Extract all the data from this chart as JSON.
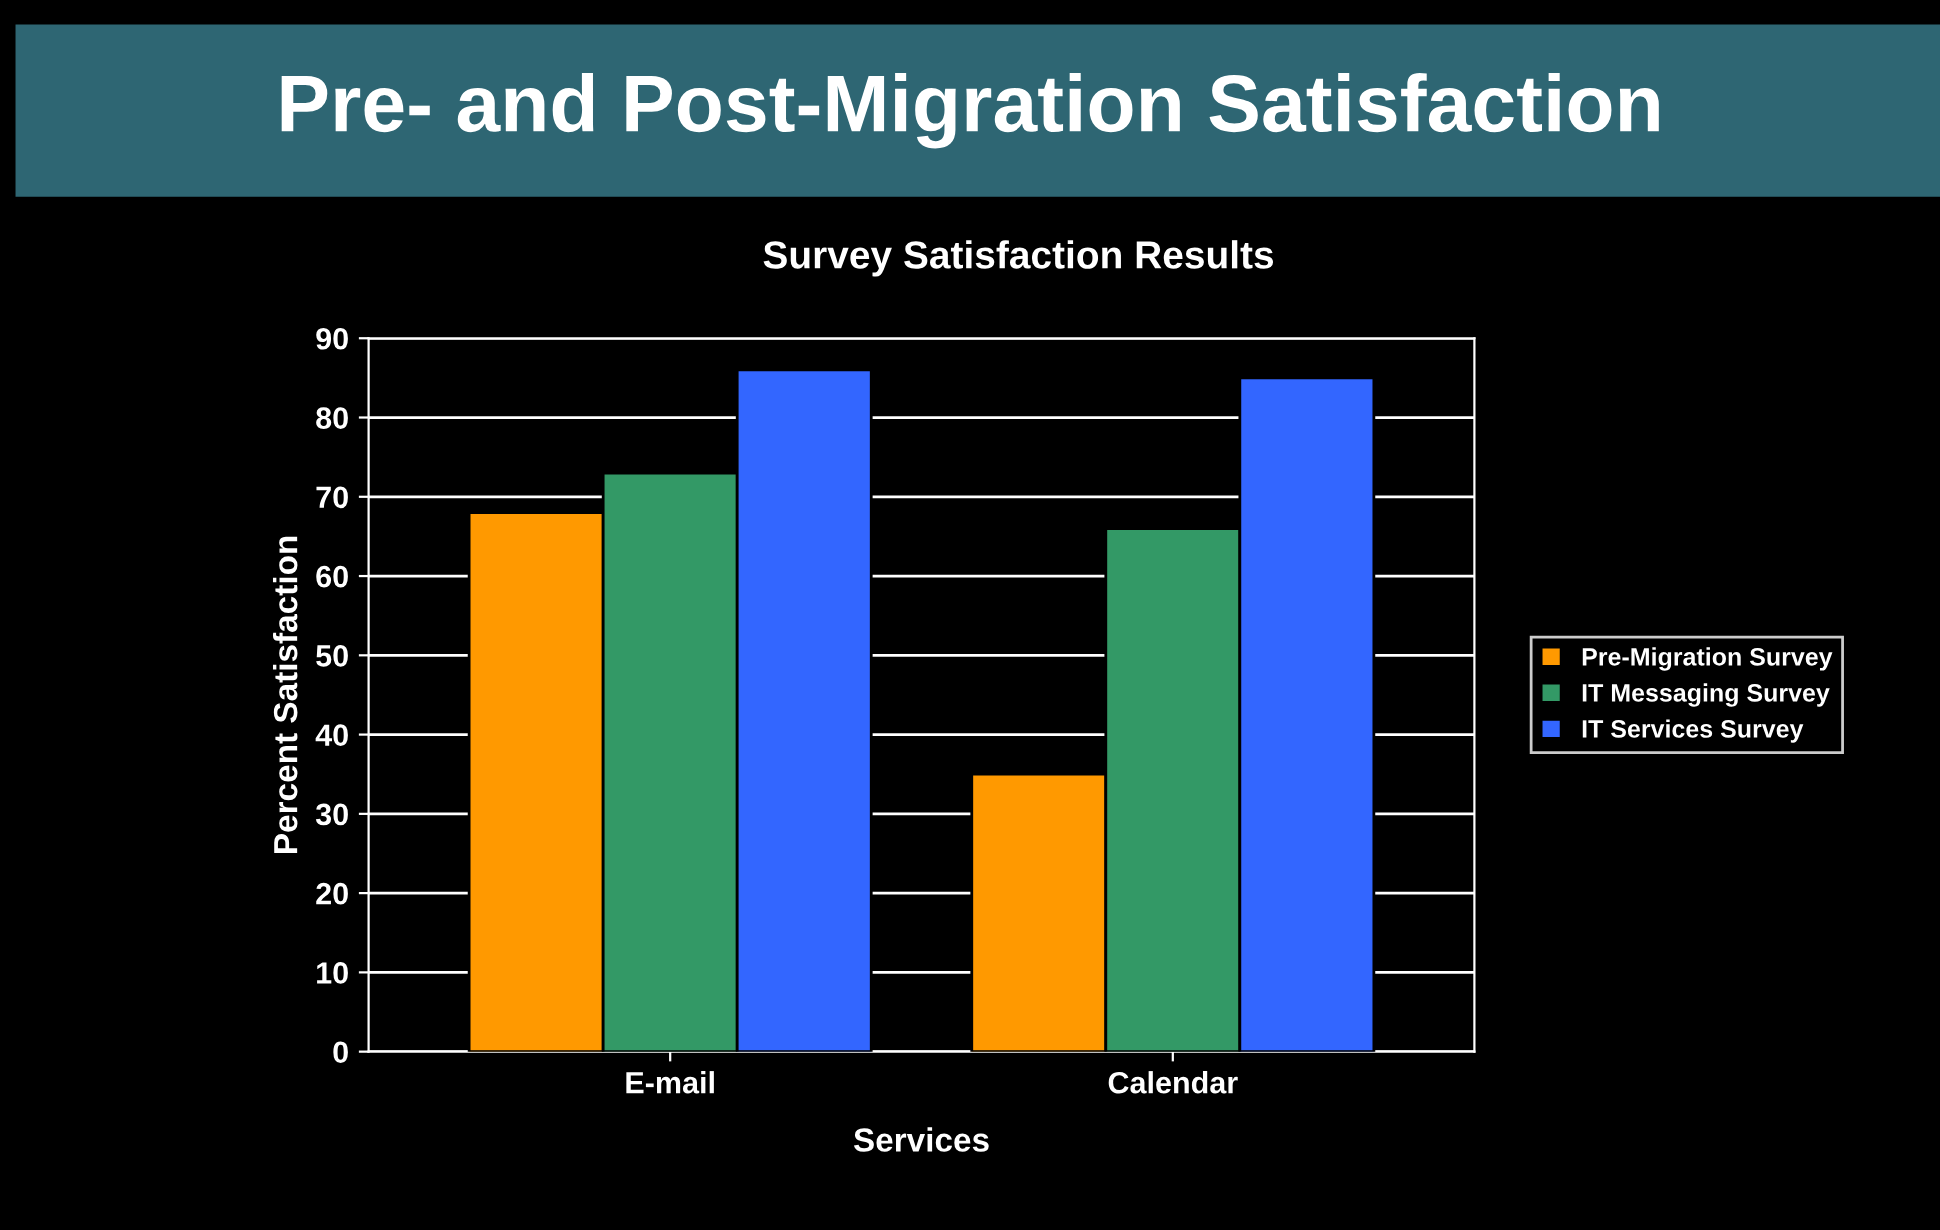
{
  "chart_data": {
    "type": "bar",
    "title": "Pre- and Post-Migration Satisfaction",
    "subtitle": "Survey Satisfaction Results",
    "xlabel": "Services",
    "ylabel": "Percent Satisfaction",
    "categories": [
      "E-mail",
      "Calendar"
    ],
    "series": [
      {
        "name": "Pre-Migration Survey",
        "color": "#ff9900",
        "values": [
          68,
          35
        ]
      },
      {
        "name": "IT Messaging Survey",
        "color": "#339966",
        "values": [
          73,
          66
        ]
      },
      {
        "name": "IT Services Survey",
        "color": "#3366ff",
        "values": [
          86,
          85
        ]
      }
    ],
    "ylim": [
      0,
      90
    ],
    "yticks": [
      0,
      10,
      20,
      30,
      40,
      50,
      60,
      70,
      80,
      90
    ],
    "grid": "y",
    "legend": "right"
  }
}
